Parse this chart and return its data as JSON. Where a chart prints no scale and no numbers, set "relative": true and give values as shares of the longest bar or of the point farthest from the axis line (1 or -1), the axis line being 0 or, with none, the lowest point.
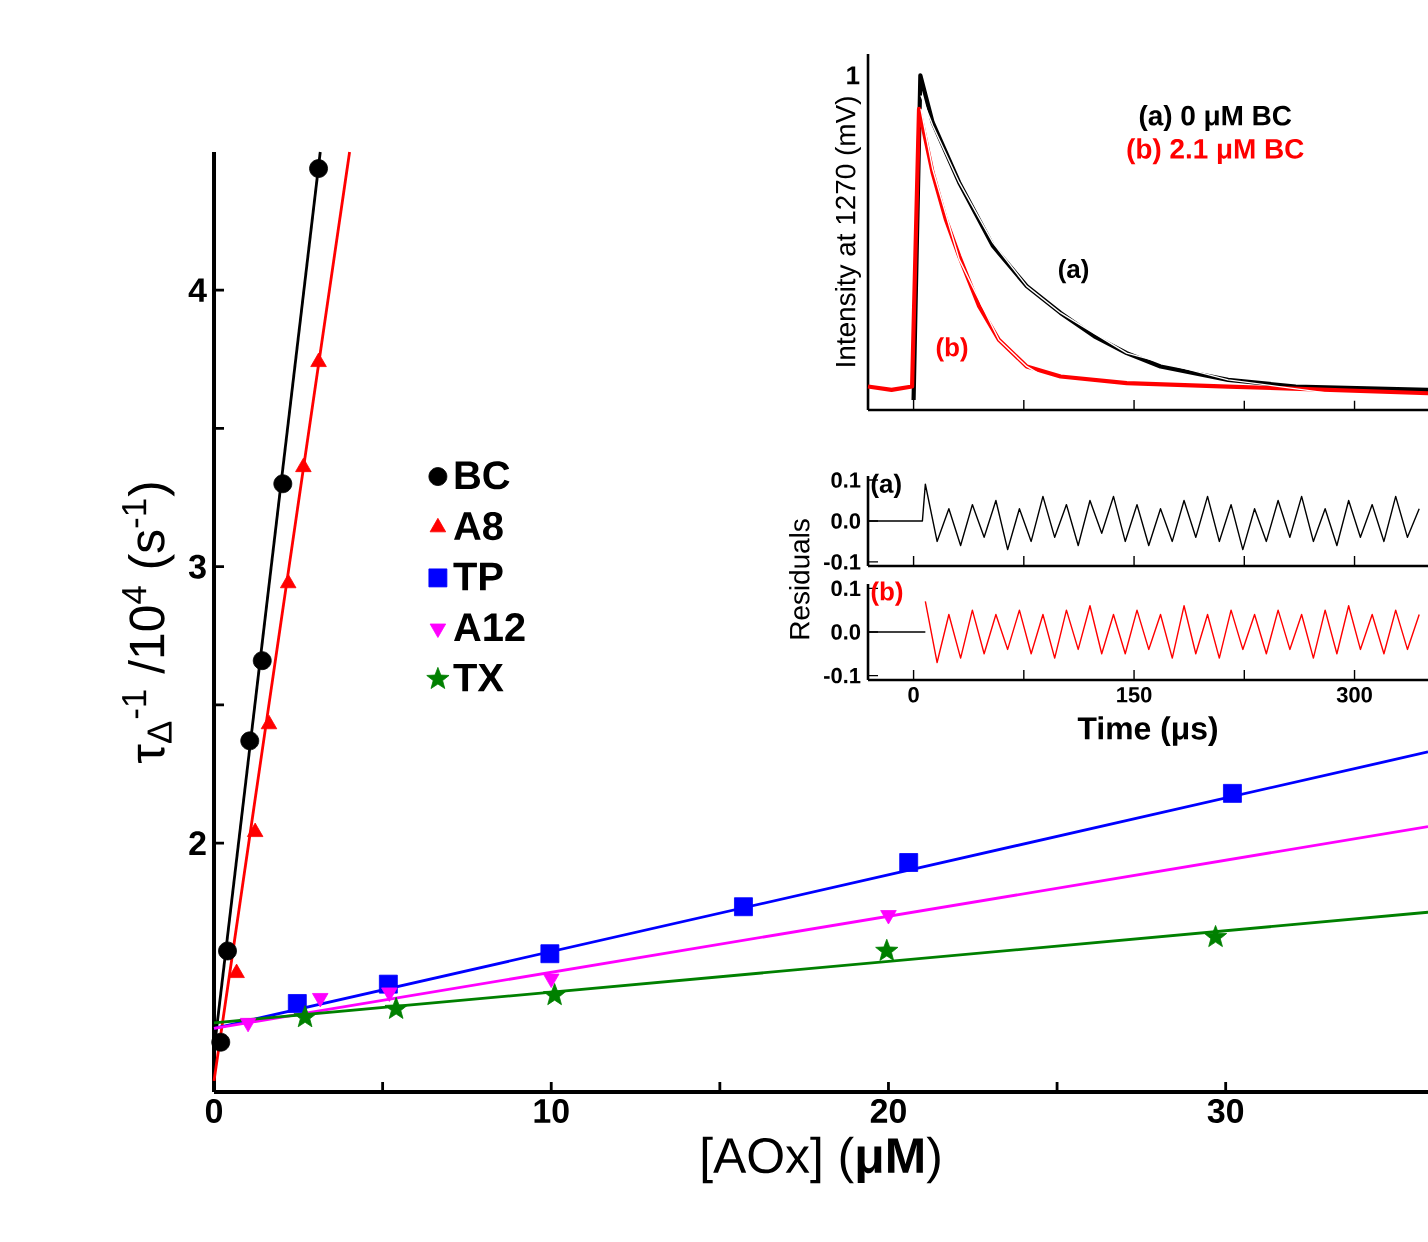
{
  "chart_data": [
    {
      "type": "scatter",
      "xlabel": "[AOx] (**μM**)",
      "ylabel": "τ$_{Δ}$$^{-1}$ /10$^{4}$ (s$^{-1}$)",
      "xlim": [
        0,
        36
      ],
      "ylim": [
        1.1,
        4.5
      ],
      "xticks": [
        0,
        {
          "value": 5,
          "label": null
        },
        10,
        {
          "value": 15,
          "label": null
        },
        20,
        {
          "value": 25,
          "label": null
        },
        30
      ],
      "yticks": [
        2,
        {
          "value": 2.5,
          "label": null
        },
        3,
        {
          "value": 3.5,
          "label": null
        },
        4
      ],
      "legend": "left",
      "series": [
        {
          "name": "BC",
          "color": "#000000",
          "marker": "circle",
          "x": [
            0.2,
            0.4,
            1.06,
            1.43,
            2.04,
            3.1
          ],
          "values": [
            1.28,
            1.61,
            2.37,
            2.66,
            3.3,
            4.44
          ]
        },
        {
          "name": "A8",
          "color": "#ff0000",
          "marker": "triangle",
          "x": [
            0.67,
            1.22,
            1.63,
            2.2,
            2.65,
            3.1
          ],
          "values": [
            1.53,
            2.04,
            2.43,
            2.94,
            3.36,
            3.74
          ]
        },
        {
          "name": "TP",
          "color": "#0000ff",
          "marker": "square",
          "x": [
            2.47,
            5.17,
            9.96,
            15.7,
            20.6,
            30.2
          ],
          "values": [
            1.42,
            1.49,
            1.6,
            1.77,
            1.93,
            2.18
          ]
        },
        {
          "name": "A12",
          "color": "#ff00ff",
          "marker": "triangle_down",
          "x": [
            1.01,
            3.15,
            5.2,
            10,
            20
          ],
          "values": [
            1.35,
            1.44,
            1.46,
            1.51,
            1.74
          ]
        },
        {
          "name": "TX",
          "color": "#008000",
          "marker": "star",
          "x": [
            2.7,
            5.4,
            10.1,
            19.95,
            29.7
          ],
          "values": [
            1.37,
            1.4,
            1.45,
            1.61,
            1.66
          ]
        },
        {
          "type": "line",
          "color": "#000000",
          "x": [
            0,
            3.15
          ],
          "values": [
            1.25,
            4.5
          ]
        },
        {
          "type": "line",
          "color": "#ff0000",
          "x": [
            0,
            4.02
          ],
          "values": [
            1.14,
            4.5
          ]
        },
        {
          "type": "line",
          "color": "#0000ff",
          "x": [
            0,
            36
          ],
          "values": [
            1.33,
            2.33
          ]
        },
        {
          "type": "line",
          "color": "#ff00ff",
          "x": [
            0,
            36
          ],
          "values": [
            1.33,
            2.06
          ]
        },
        {
          "type": "line",
          "color": "#008000",
          "x": [
            0,
            36
          ],
          "values": [
            1.35,
            1.75
          ]
        }
      ]
    },
    {
      "type": "line",
      "ylabel": "Intensity at 1270 (mV)",
      "xlim": [
        -31,
        350
      ],
      "relative": true,
      "xticks": [
        {
          "value": 0,
          "label": null
        },
        {
          "value": 75,
          "label": null
        },
        {
          "value": 150,
          "label": null
        },
        {
          "value": 225,
          "label": null
        },
        {
          "value": 300,
          "label": null
        }
      ],
      "tick_labels": false,
      "legend": "top right",
      "annotations": [
        "(a)",
        "(b)",
        "1"
      ],
      "series": [
        {
          "name": "(a) 0 μM BC",
          "color": "#000000",
          "x": [
            0,
            4.6,
            12.9,
            31,
            54,
            77,
            100,
            123,
            145,
            168,
            214,
            260,
            350
          ],
          "values": [
            0.03,
            1,
            0.86,
            0.68,
            0.49,
            0.37,
            0.29,
            0.22,
            0.17,
            0.13,
            0.09,
            0.07,
            0.06
          ]
        },
        {
          "name": "(b) 2.1 μM BC",
          "color": "#ff0000",
          "x": [
            -31,
            -15,
            -1,
            3.7,
            12.9,
            21.9,
            31,
            44.6,
            58,
            77,
            100,
            145,
            214,
            350
          ],
          "values": [
            0.07,
            0.06,
            0.07,
            0.9,
            0.71,
            0.57,
            0.46,
            0.31,
            0.21,
            0.13,
            0.1,
            0.08,
            0.07,
            0.05
          ]
        },
        {
          "color": "#ffffff",
          "x": [
            5,
            13,
            31,
            54,
            77,
            100,
            145,
            214,
            300,
            350
          ],
          "values": [
            0.94,
            0.85,
            0.68,
            0.5,
            0.37,
            0.29,
            0.17,
            0.09,
            0.04,
            0.03
          ]
        },
        {
          "color": "#ffffff",
          "x": [
            5,
            13,
            31,
            58,
            77,
            100,
            145,
            214,
            350
          ],
          "values": [
            0.9,
            0.72,
            0.45,
            0.21,
            0.13,
            0.07,
            0.04,
            0.03,
            0.03
          ]
        }
      ]
    },
    {
      "type": "line",
      "ylabel": "Residuals",
      "xlim": [
        -31,
        350
      ],
      "ylim": [
        -0.11,
        0.11
      ],
      "xticks": [
        {
          "value": 0,
          "label": null
        },
        {
          "value": 75,
          "label": null
        },
        {
          "value": 150,
          "label": null
        },
        {
          "value": 225,
          "label": null
        },
        {
          "value": 300,
          "label": null
        }
      ],
      "yticks": [
        -0.1,
        {
          "value": 0,
          "label": "0.0"
        },
        0.1
      ],
      "tick_labels": "y",
      "annotations": [
        "(a)"
      ],
      "series": [
        {
          "color": "#000000",
          "x": [
            -31,
            6,
            8,
            16,
            24,
            32,
            40,
            48,
            56,
            64,
            72,
            80,
            88,
            96,
            104,
            112,
            120,
            128,
            136,
            144,
            152,
            160,
            168,
            176,
            184,
            192,
            200,
            208,
            216,
            224,
            232,
            240,
            248,
            256,
            264,
            272,
            280,
            288,
            296,
            304,
            312,
            320,
            328,
            336,
            344
          ],
          "values": [
            0,
            0,
            0.09,
            -0.05,
            0.03,
            -0.06,
            0.04,
            -0.04,
            0.05,
            -0.07,
            0.03,
            -0.05,
            0.06,
            -0.04,
            0.04,
            -0.06,
            0.05,
            -0.03,
            0.06,
            -0.05,
            0.04,
            -0.06,
            0.03,
            -0.05,
            0.05,
            -0.04,
            0.06,
            -0.05,
            0.04,
            -0.07,
            0.03,
            -0.05,
            0.05,
            -0.04,
            0.06,
            -0.05,
            0.03,
            -0.06,
            0.05,
            -0.04,
            0.04,
            -0.05,
            0.06,
            -0.04,
            0.03
          ]
        }
      ]
    },
    {
      "type": "line",
      "xlabel": "Time (μs)",
      "xlim": [
        -31,
        350
      ],
      "ylim": [
        -0.11,
        0.11
      ],
      "xticks": [
        0,
        {
          "value": 75,
          "label": null
        },
        150,
        {
          "value": 225,
          "label": null
        },
        300
      ],
      "yticks": [
        -0.1,
        {
          "value": 0,
          "label": "0.0"
        },
        0.1
      ],
      "annotations": [
        "(b)"
      ],
      "series": [
        {
          "color": "#ff0000",
          "x": [
            8,
            16,
            24,
            32,
            40,
            48,
            56,
            64,
            72,
            80,
            88,
            96,
            104,
            112,
            120,
            128,
            136,
            144,
            152,
            160,
            168,
            176,
            184,
            192,
            200,
            208,
            216,
            224,
            232,
            240,
            248,
            256,
            264,
            272,
            280,
            288,
            296,
            304,
            312,
            320,
            328,
            336,
            344
          ],
          "values": [
            0.07,
            -0.07,
            0.04,
            -0.06,
            0.05,
            -0.05,
            0.04,
            -0.04,
            0.05,
            -0.05,
            0.04,
            -0.06,
            0.05,
            -0.04,
            0.06,
            -0.05,
            0.04,
            -0.05,
            0.05,
            -0.04,
            0.04,
            -0.06,
            0.06,
            -0.05,
            0.04,
            -0.06,
            0.05,
            -0.04,
            0.04,
            -0.05,
            0.05,
            -0.04,
            0.04,
            -0.06,
            0.05,
            -0.05,
            0.06,
            -0.04,
            0.04,
            -0.05,
            0.05,
            -0.04,
            0.04
          ]
        },
        {
          "color": "#000000",
          "x": [
            -31,
            8
          ],
          "values": [
            0,
            0
          ]
        }
      ]
    }
  ]
}
